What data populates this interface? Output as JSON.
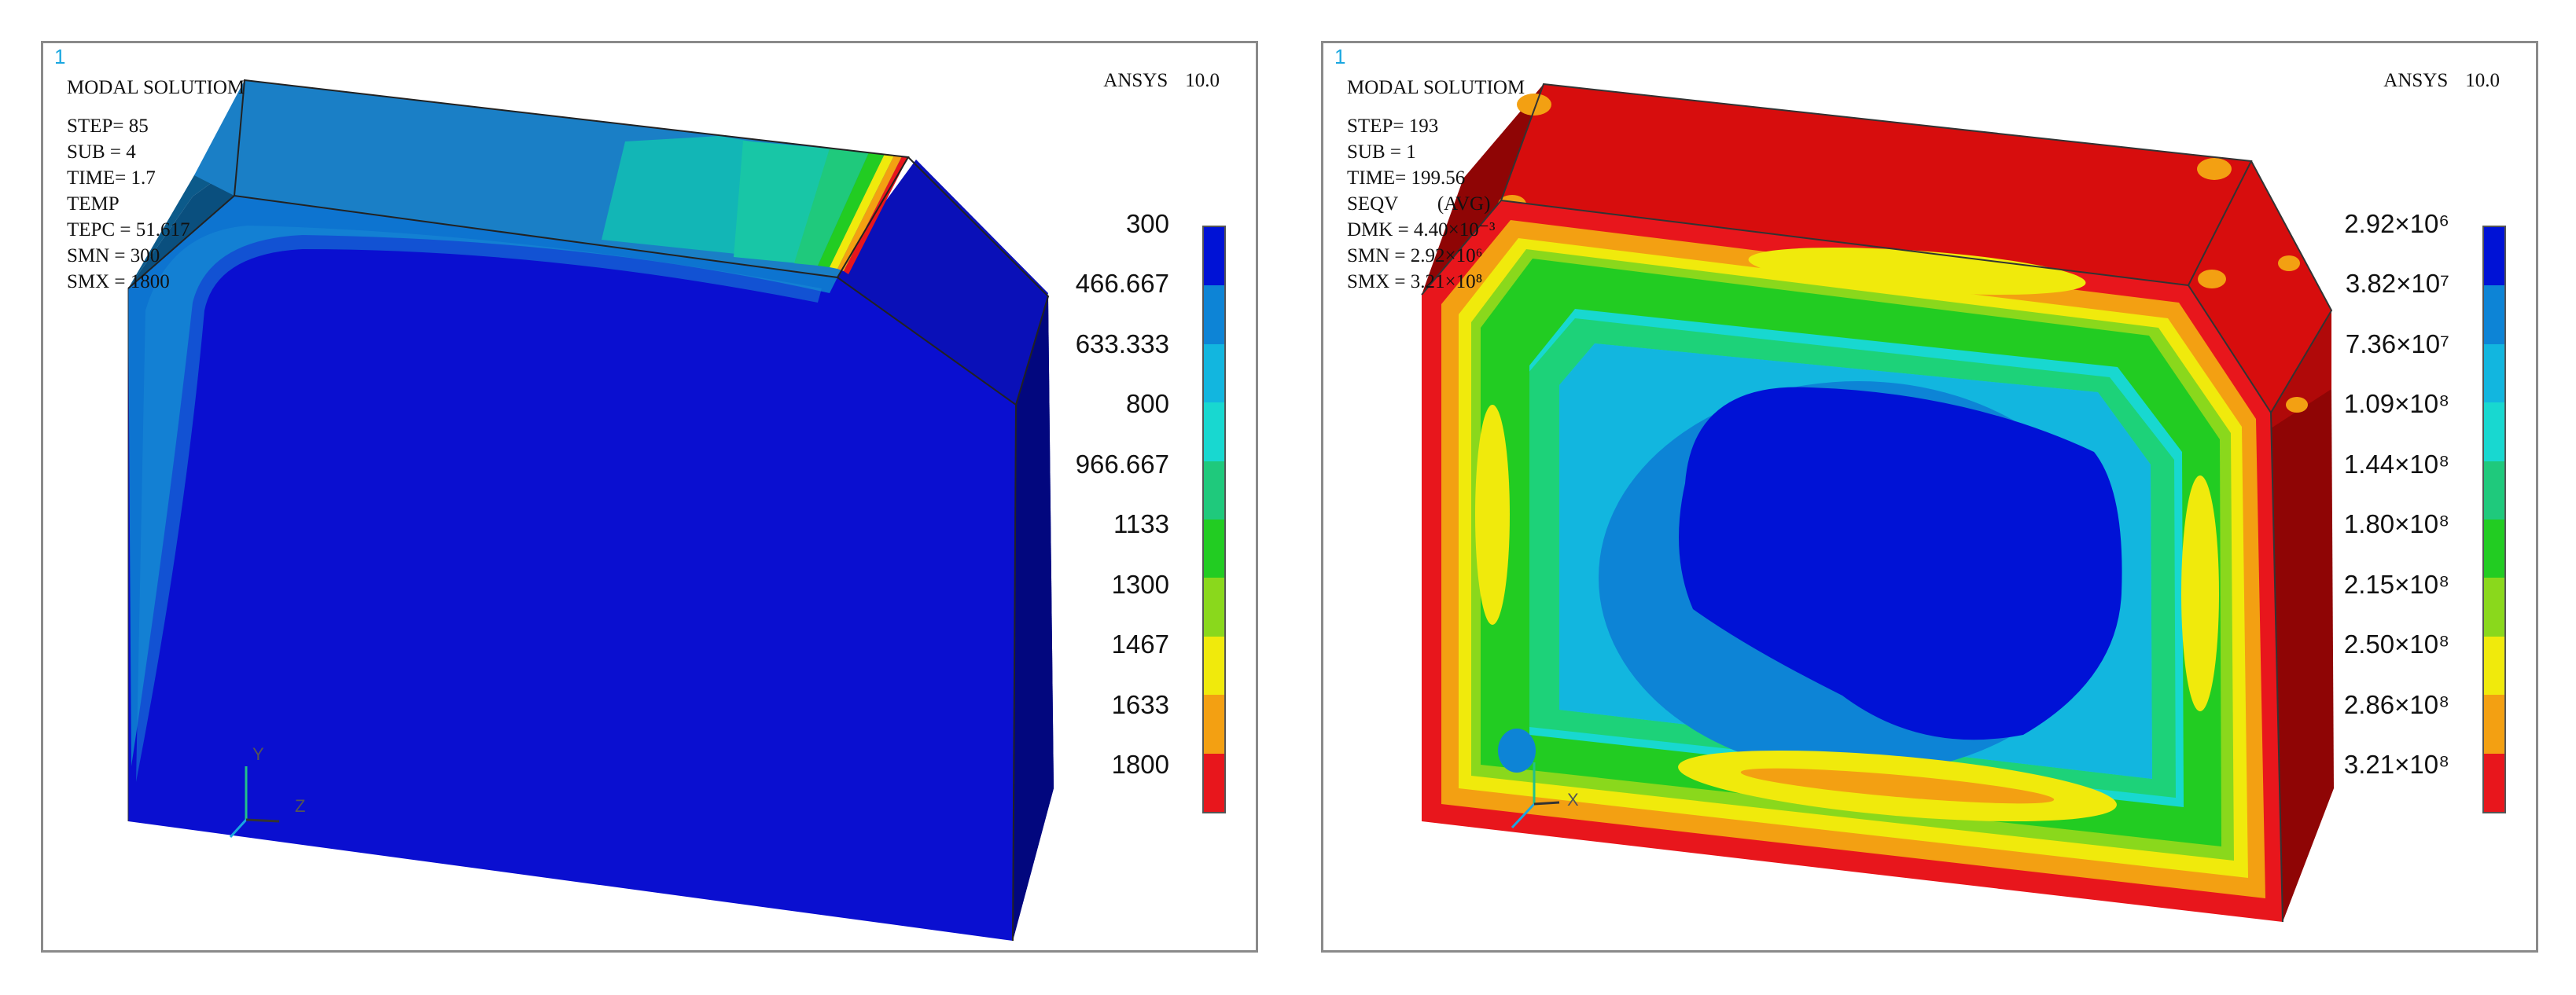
{
  "left": {
    "corner": "1",
    "heading": "MODAL SOLUTIOM",
    "version_name": "ANSYS",
    "version_num": "10.0",
    "info": [
      "STEP= 85",
      "SUB  = 4",
      "TIME= 1.7",
      "TEMP",
      "TEPC = 51.617",
      "SMN = 300",
      "SMX  = 1800"
    ],
    "legend": [
      "300",
      "466.667",
      "633.333",
      "800",
      "966.667",
      "1133",
      "1300",
      "1467",
      "1633",
      "1800"
    ],
    "axis": [
      "Y",
      "Z"
    ]
  },
  "right": {
    "corner": "1",
    "heading": "MODAL SOLUTIOM",
    "version_name": "ANSYS",
    "version_num": "10.0",
    "info": [
      "STEP= 193",
      "SUB  = 1",
      "TIME= 199.56",
      "SEQV        (AVG)",
      "DMK = 4.40×10⁻³",
      "SMN = 2.92×10⁶",
      "SMX  = 3.21×10⁸"
    ],
    "legend": [
      "2.92×10⁶",
      "3.82×10⁷",
      "7.36×10⁷",
      "1.09×10⁸",
      "1.44×10⁸",
      "1.80×10⁸",
      "2.15×10⁸",
      "2.50×10⁸",
      "2.86×10⁸",
      "3.21×10⁸"
    ],
    "axis": [
      "X"
    ]
  },
  "colors": {
    "contour": [
      "#0012d6",
      "#0d84d6",
      "#12b6df",
      "#18d8d0",
      "#1fc97c",
      "#22cc22",
      "#8ad81c",
      "#f0ea0c",
      "#f3a012",
      "#e8161c"
    ],
    "deep_blue": "#0a0fd0",
    "red_face": "#d70d0d",
    "frame_border": "#8a8a8a"
  }
}
